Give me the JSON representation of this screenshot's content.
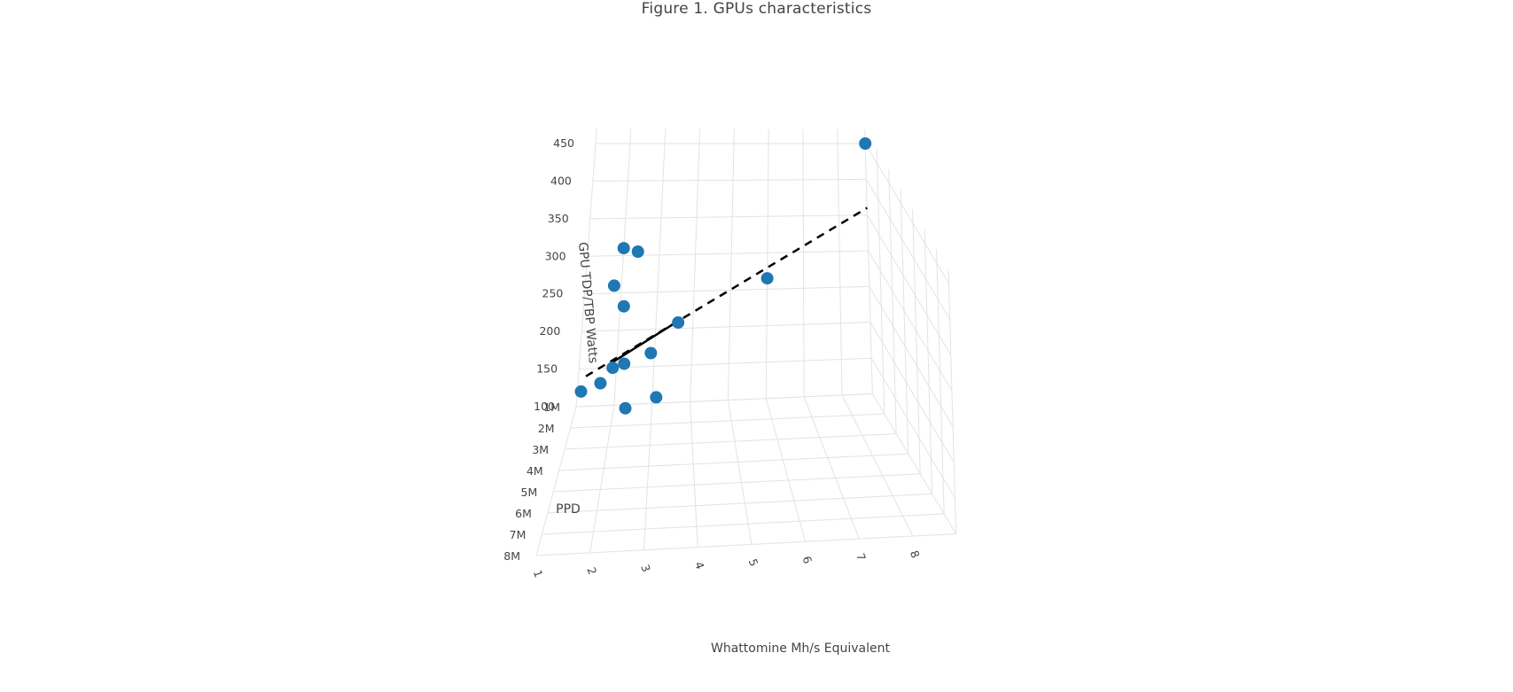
{
  "chart_data": {
    "type": "scatter",
    "title": "Figure 1. GPUs characteristics",
    "x_axis": {
      "label": "Whattomine Mh/s Equivalent",
      "ticks": [
        "1",
        "2",
        "3",
        "4",
        "5",
        "6",
        "7",
        "8"
      ]
    },
    "y_axis": {
      "label": "PPD",
      "ticks": [
        "1M",
        "2M",
        "3M",
        "4M",
        "5M",
        "6M",
        "7M",
        "8M"
      ]
    },
    "z_axis": {
      "label": "GPU TDP/TBP Watts",
      "ticks": [
        "100",
        "150",
        "200",
        "250",
        "300",
        "350",
        "400",
        "450"
      ]
    },
    "marker_color": "#1f77b4",
    "trend_line_color": "#000000",
    "grid": true,
    "points": [
      {
        "x": 1.1,
        "y": 1.0,
        "z": 120
      },
      {
        "x": 1.6,
        "y": 1.0,
        "z": 130
      },
      {
        "x": 1.9,
        "y": 1.0,
        "z": 150
      },
      {
        "x": 2.2,
        "y": 1.0,
        "z": 155
      },
      {
        "x": 2.3,
        "y": 1.0,
        "z": 95
      },
      {
        "x": 3.1,
        "y": 1.0,
        "z": 108
      },
      {
        "x": 2.9,
        "y": 1.0,
        "z": 168
      },
      {
        "x": 3.6,
        "y": 1.0,
        "z": 208
      },
      {
        "x": 1.8,
        "y": 1.0,
        "z": 260
      },
      {
        "x": 2.1,
        "y": 1.0,
        "z": 232
      },
      {
        "x": 2.0,
        "y": 1.0,
        "z": 310
      },
      {
        "x": 2.4,
        "y": 1.0,
        "z": 305
      },
      {
        "x": 6.0,
        "y": 1.0,
        "z": 265
      },
      {
        "x": 8.8,
        "y": 1.0,
        "z": 450
      }
    ]
  }
}
